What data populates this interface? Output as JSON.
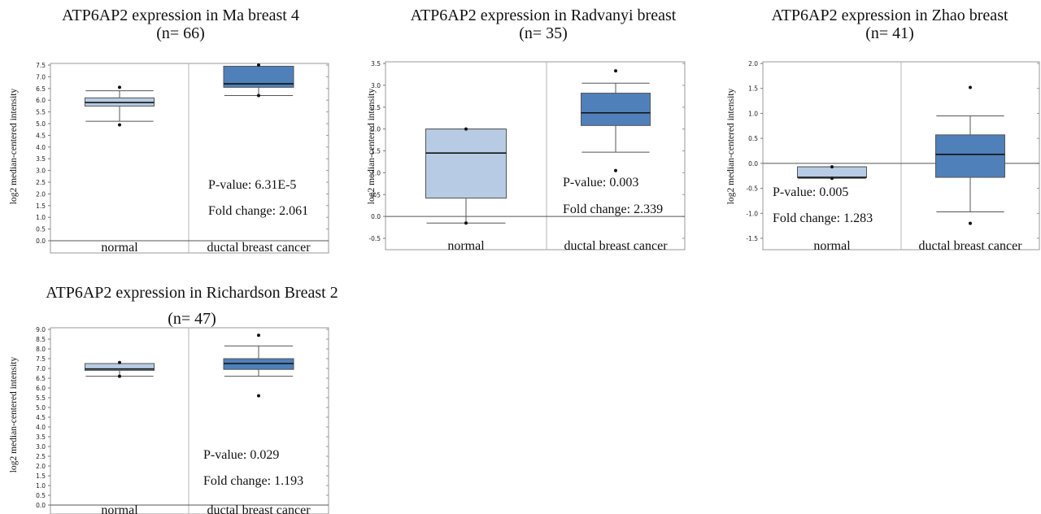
{
  "chart_data": [
    {
      "type": "box",
      "title": "ATP6AP2 expression in Ma breast 4",
      "subtitle": "(n= 66)",
      "ylabel": "log2 median-centered intensity",
      "ylim": [
        0.0,
        7.5
      ],
      "yticks": [
        "0.0",
        "0.5",
        "1.0",
        "1.5",
        "2.0",
        "2.5",
        "3.0",
        "3.5",
        "4.0",
        "4.5",
        "5.0",
        "5.5",
        "6.0",
        "6.5",
        "7.0",
        "7.5"
      ],
      "categories": [
        "normal",
        "ductal breast cancer"
      ],
      "boxes": [
        {
          "name": "normal",
          "whisker_low": 5.1,
          "q1": 5.75,
          "median": 5.9,
          "q3": 6.1,
          "whisker_high": 6.4,
          "outliers": [
            4.95,
            6.55
          ],
          "color": "#b7cce4"
        },
        {
          "name": "ductal breast cancer",
          "whisker_low": 6.2,
          "q1": 6.55,
          "median": 6.7,
          "q3": 7.45,
          "whisker_high": 7.45,
          "outliers": [
            6.2,
            7.5
          ],
          "color": "#4f80b9"
        }
      ],
      "annotations": [
        "P-value: 6.31E-5",
        "Fold change: 2.061"
      ]
    },
    {
      "type": "box",
      "title": "ATP6AP2 expression in Radvanyi breast",
      "subtitle": "(n= 35)",
      "ylabel": "log2 median-centered intensity",
      "ylim": [
        -0.5,
        3.5
      ],
      "yticks": [
        "-0.5",
        "0.0",
        "0.5",
        "1.0",
        "1.5",
        "2.0",
        "2.5",
        "3.0",
        "3.5"
      ],
      "categories": [
        "normal",
        "ductal breast cancer"
      ],
      "boxes": [
        {
          "name": "normal",
          "whisker_low": -0.15,
          "q1": 0.42,
          "median": 1.45,
          "q3": 2.0,
          "whisker_high": 2.0,
          "outliers": [
            -0.15,
            2.0
          ],
          "color": "#b7cce4"
        },
        {
          "name": "ductal breast cancer",
          "whisker_low": 1.47,
          "q1": 2.08,
          "median": 2.37,
          "q3": 2.82,
          "whisker_high": 3.05,
          "outliers": [
            1.05,
            3.33
          ],
          "color": "#4f80b9"
        }
      ],
      "annotations": [
        "P-value: 0.003",
        "Fold change: 2.339"
      ]
    },
    {
      "type": "box",
      "title": "ATP6AP2 expression in Zhao breast",
      "subtitle": "(n= 41)",
      "ylabel": "log2 median-centered intensity",
      "ylim": [
        -1.5,
        2.0
      ],
      "yticks": [
        "-1.5",
        "-1.0",
        "-0.5",
        "0.0",
        "0.5",
        "1.0",
        "1.5",
        "2.0"
      ],
      "categories": [
        "normal",
        "ductal breast cancer"
      ],
      "boxes": [
        {
          "name": "normal",
          "whisker_low": -0.3,
          "q1": -0.28,
          "median": -0.28,
          "q3": -0.07,
          "whisker_high": -0.07,
          "outliers": [
            -0.07,
            -0.3
          ],
          "color": "#b7cce4"
        },
        {
          "name": "ductal breast cancer",
          "whisker_low": -0.97,
          "q1": -0.28,
          "median": 0.18,
          "q3": 0.57,
          "whisker_high": 0.95,
          "outliers": [
            -1.2,
            1.52
          ],
          "color": "#4f80b9"
        }
      ],
      "annotations": [
        "P-value: 0.005",
        "Fold change: 1.283"
      ]
    },
    {
      "type": "box",
      "title": "ATP6AP2 expression in Richardson Breast 2",
      "subtitle": "(n= 47)",
      "ylabel": "log2 median-centered intensity",
      "ylim": [
        0.0,
        9.0
      ],
      "yticks": [
        "0.0",
        "0.5",
        "1.0",
        "1.5",
        "2.0",
        "2.5",
        "3.0",
        "3.5",
        "4.0",
        "4.5",
        "5.0",
        "5.5",
        "6.0",
        "6.5",
        "7.0",
        "7.5",
        "8.0",
        "8.5",
        "9.0"
      ],
      "categories": [
        "normal",
        "ductal breast cancer"
      ],
      "boxes": [
        {
          "name": "normal",
          "whisker_low": 6.6,
          "q1": 6.9,
          "median": 6.97,
          "q3": 7.25,
          "whisker_high": 7.25,
          "outliers": [
            6.6,
            7.3
          ],
          "color": "#b7cce4"
        },
        {
          "name": "ductal breast cancer",
          "whisker_low": 6.6,
          "q1": 6.95,
          "median": 7.25,
          "q3": 7.5,
          "whisker_high": 8.15,
          "outliers": [
            5.6,
            8.7
          ],
          "color": "#4f80b9"
        }
      ],
      "annotations": [
        "P-value: 0.029",
        "Fold change: 1.193"
      ]
    }
  ]
}
